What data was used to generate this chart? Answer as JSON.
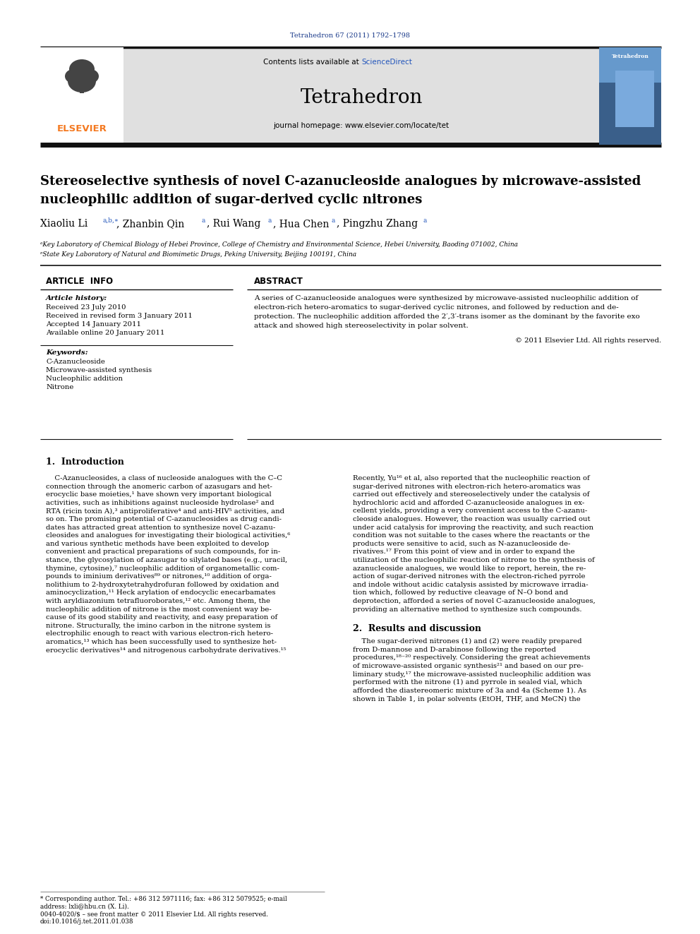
{
  "page_width": 9.92,
  "page_height": 13.23,
  "dpi": 100,
  "bg_color": "#ffffff",
  "journal_ref": "Tetrahedron 67 (2011) 1792–1798",
  "journal_ref_color": "#1a3a8a",
  "header_bg": "#e0e0e0",
  "contents_text": "Contents lists available at ",
  "sciencedirect_text": "ScienceDirect",
  "sd_color": "#2255bb",
  "journal_name": "Tetrahedron",
  "homepage_text": "journal homepage: www.elsevier.com/locate/tet",
  "elsevier_color": "#f47920",
  "title1": "Stereoselective synthesis of novel C-azanucleoside analogues by microwave-assisted",
  "title2": "nucleophilic addition of sugar-derived cyclic nitrones",
  "affil1": "ᵃKey Laboratory of Chemical Biology of Hebei Province, College of Chemistry and Environmental Science, Hebei University, Baoding 071002, China",
  "affil2": "ᵄState Key Laboratory of Natural and Biomimetic Drugs, Peking University, Beijing 100191, China",
  "art_info": "ARTICLE  INFO",
  "abstract_hdr": "ABSTRACT",
  "hist_label": "Article history:",
  "hist_lines": [
    "Received 23 July 2010",
    "Received in revised form 3 January 2011",
    "Accepted 14 January 2011",
    "Available online 20 January 2011"
  ],
  "kw_label": "Keywords:",
  "keywords": [
    "C-Azanucleoside",
    "Microwave-assisted synthesis",
    "Nucleophilic addition",
    "Nitrone"
  ],
  "abstract_body": [
    "A series of C-azanucleoside analogues were synthesized by microwave-assisted nucleophilic addition of",
    "electron-rich hetero-aromatics to sugar-derived cyclic nitrones, and followed by reduction and de-",
    "protection. The nucleophilic addition afforded the 2′,3′-trans isomer as the dominant by the favorite exo",
    "attack and showed high stereoselectivity in polar solvent."
  ],
  "copyright": "© 2011 Elsevier Ltd. All rights reserved.",
  "intro_hdr": "1.  Introduction",
  "intro_col1": [
    "    C-Azanucleosides, a class of nucleoside analogues with the C–C",
    "connection through the anomeric carbon of azasugars and het-",
    "erocyclic base moieties,¹ have shown very important biological",
    "activities, such as inhibitions against nucleoside hydrolase² and",
    "RTA (ricin toxin A),³ antiproliferative⁴ and anti-HIV⁵ activities, and",
    "so on. The promising potential of C-azanucleosides as drug candi-",
    "dates has attracted great attention to synthesize novel C-azanu-",
    "cleosides and analogues for investigating their biological activities,⁶",
    "and various synthetic methods have been exploited to develop",
    "convenient and practical preparations of such compounds, for in-",
    "stance, the glycosylation of azasugar to silylated bases (e.g., uracil,",
    "thymine, cytosine),⁷ nucleophilic addition of organometallic com-",
    "pounds to iminium derivatives⁸⁹ or nitrones,¹⁰ addition of orga-",
    "nolithium to 2-hydroxytetrahydrofuran followed by oxidation and",
    "aminocyclization,¹¹ Heck arylation of endocyclic enecarbamates",
    "with aryldiazonium tetrafluoroborates,¹² etc. Among them, the",
    "nucleophilic addition of nitrone is the most convenient way be-",
    "cause of its good stability and reactivity, and easy preparation of",
    "nitrone. Structurally, the imino carbon in the nitrone system is",
    "electrophilic enough to react with various electron-rich hetero-",
    "aromatics,¹³ which has been successfully used to synthesize het-",
    "erocyclic derivatives¹⁴ and nitrogenous carbohydrate derivatives.¹⁵"
  ],
  "intro_col2": [
    "Recently, Yu¹⁶ et al, also reported that the nucleophilic reaction of",
    "sugar-derived nitrones with electron-rich hetero-aromatics was",
    "carried out effectively and stereoselectively under the catalysis of",
    "hydrochloric acid and afforded C-azanucleoside analogues in ex-",
    "cellent yields, providing a very convenient access to the C-azanu-",
    "cleoside analogues. However, the reaction was usually carried out",
    "under acid catalysis for improving the reactivity, and such reaction",
    "condition was not suitable to the cases where the reactants or the",
    "products were sensitive to acid, such as N-azanucleoside de-",
    "rivatives.¹⁷ From this point of view and in order to expand the",
    "utilization of the nucleophilic reaction of nitrone to the synthesis of",
    "azanucleoside analogues, we would like to report, herein, the re-",
    "action of sugar-derived nitrones with the electron-riched pyrrole",
    "and indole without acidic catalysis assisted by microwave irradia-",
    "tion which, followed by reductive cleavage of N–O bond and",
    "deprotection, afforded a series of novel C-azanucleoside analogues,",
    "providing an alternative method to synthesize such compounds."
  ],
  "results_hdr": "2.  Results and discussion",
  "results_col2": [
    "    The sugar-derived nitrones (1) and (2) were readily prepared",
    "from D-mannose and D-arabinose following the reported",
    "procedures,¹⁸⁻²⁰ respectively. Considering the great achievements",
    "of microwave-assisted organic synthesis²¹ and based on our pre-",
    "liminary study,¹⁷ the microwave-assisted nucleophilic addition was",
    "performed with the nitrone (1) and pyrrole in sealed vial, which",
    "afforded the diastereomeric mixture of 3a and 4a (Scheme 1). As",
    "shown in Table 1, in polar solvents (EtOH, THF, and MeCN) the"
  ],
  "footnote_line1": "* Corresponding author. Tel.: +86 312 5971116; fax: +86 312 5079525; e-mail",
  "footnote_line2": "address: lxli@hbu.cn (X. Li).",
  "footnote_line3": "0040-4020/$ – see front matter © 2011 Elsevier Ltd. All rights reserved.",
  "footnote_line4": "doi:10.1016/j.tet.2011.01.038"
}
